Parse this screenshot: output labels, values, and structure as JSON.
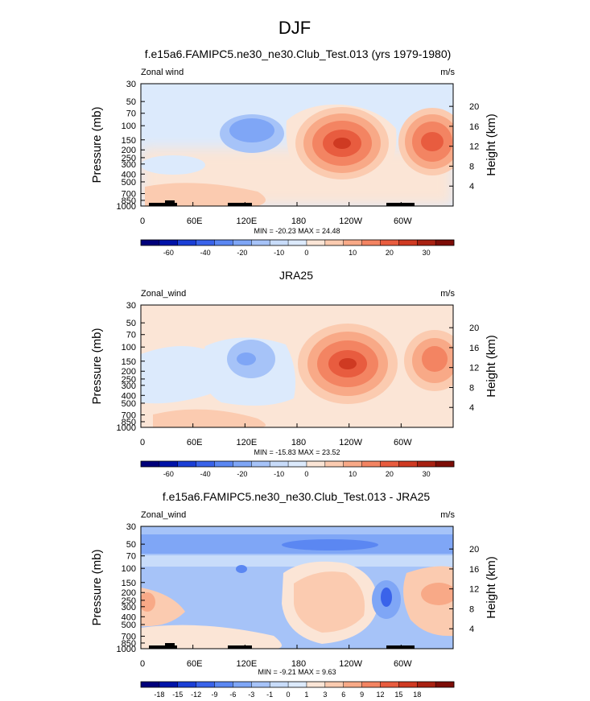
{
  "page_title": "DJF",
  "chart_data": [
    {
      "type": "heatmap",
      "title": "f.e15a6.FAMIPC5.ne30_ne30.Club_Test.013 (yrs 1979-1980)",
      "left_label": "Zonal wind",
      "units": "m/s",
      "ylabel": "Pressure (mb)",
      "ylabel_right": "Height (km)",
      "pressure_ticks": [
        "30",
        "50",
        "70",
        "100",
        "150",
        "200",
        "250",
        "300",
        "400",
        "500",
        "700",
        "850",
        "1000"
      ],
      "height_ticks": [
        "20",
        "16",
        "12",
        "8",
        "4"
      ],
      "x_ticks": [
        "0",
        "60E",
        "120E",
        "180",
        "120W",
        "60W"
      ],
      "minmax": "MIN = -20.23  MAX = 24.48",
      "colorbar_labels": [
        "-60",
        "-40",
        "-20",
        "-10",
        "0",
        "10",
        "20",
        "30"
      ],
      "contour_levels": [
        -70,
        -60,
        -50,
        -40,
        -30,
        -20,
        -15,
        -10,
        -5,
        0,
        5,
        10,
        15,
        20,
        25,
        30,
        35
      ],
      "min": -20.23,
      "max": 24.48,
      "features": [
        {
          "lon": 120,
          "pressure": 120,
          "value": -20
        },
        {
          "lon": 220,
          "pressure": 180,
          "value": 24
        },
        {
          "lon": 310,
          "pressure": 180,
          "value": 22
        }
      ]
    },
    {
      "type": "heatmap",
      "title": "JRA25",
      "left_label": "Zonal_wind",
      "units": "m/s",
      "ylabel": "Pressure (mb)",
      "ylabel_right": "Height (km)",
      "pressure_ticks": [
        "30",
        "50",
        "70",
        "100",
        "150",
        "200",
        "250",
        "300",
        "400",
        "500",
        "700",
        "850",
        "1000"
      ],
      "height_ticks": [
        "20",
        "16",
        "12",
        "8",
        "4"
      ],
      "x_ticks": [
        "0",
        "60E",
        "120E",
        "180",
        "120W",
        "60W"
      ],
      "minmax": "MIN = -15.83  MAX = 23.52",
      "colorbar_labels": [
        "-60",
        "-40",
        "-20",
        "-10",
        "0",
        "10",
        "20",
        "30"
      ],
      "contour_levels": [
        -70,
        -60,
        -50,
        -40,
        -30,
        -20,
        -15,
        -10,
        -5,
        0,
        5,
        10,
        15,
        20,
        25,
        30,
        35
      ],
      "min": -15.83,
      "max": 23.52,
      "features": [
        {
          "lon": 120,
          "pressure": 150,
          "value": -15
        },
        {
          "lon": 240,
          "pressure": 170,
          "value": 23
        },
        {
          "lon": 325,
          "pressure": 170,
          "value": 19
        }
      ]
    },
    {
      "type": "heatmap",
      "title": "f.e15a6.FAMIPC5.ne30_ne30.Club_Test.013 - JRA25",
      "left_label": "Zonal_wind",
      "units": "m/s",
      "ylabel": "Pressure (mb)",
      "ylabel_right": "Height (km)",
      "pressure_ticks": [
        "30",
        "50",
        "70",
        "100",
        "150",
        "200",
        "250",
        "300",
        "400",
        "500",
        "700",
        "850",
        "1000"
      ],
      "height_ticks": [
        "20",
        "16",
        "12",
        "8",
        "4"
      ],
      "x_ticks": [
        "0",
        "60E",
        "120E",
        "180",
        "120W",
        "60W"
      ],
      "minmax": "MIN = -9.21  MAX = 9.63",
      "colorbar_labels": [
        "-18",
        "-15",
        "-12",
        "-9",
        "-6",
        "-3",
        "-1",
        "0",
        "1",
        "3",
        "6",
        "9",
        "12",
        "15",
        "18"
      ],
      "contour_levels": [
        -21,
        -18,
        -15,
        -12,
        -9,
        -6,
        -3,
        -1,
        0,
        1,
        3,
        6,
        9,
        12,
        15,
        18,
        21
      ],
      "min": -9.21,
      "max": 9.63,
      "features": [
        {
          "lon": 200,
          "pressure": 50,
          "value": -9
        },
        {
          "lon": 210,
          "pressure": 200,
          "value": 6
        },
        {
          "lon": 345,
          "pressure": 220,
          "value": 9
        },
        {
          "lon": 285,
          "pressure": 200,
          "value": -9
        }
      ]
    }
  ],
  "colors": {
    "scale": [
      "#00007a",
      "#0013a8",
      "#1b3fd6",
      "#3a63ea",
      "#5b87f2",
      "#7fa6f6",
      "#a6c3f8",
      "#c8dcfa",
      "#dceafc",
      "#fbe5d6",
      "#fbcbb0",
      "#f8a987",
      "#f38462",
      "#e85c3f",
      "#cf3a22",
      "#a82112",
      "#7d0d07"
    ],
    "topo": "#000000"
  }
}
